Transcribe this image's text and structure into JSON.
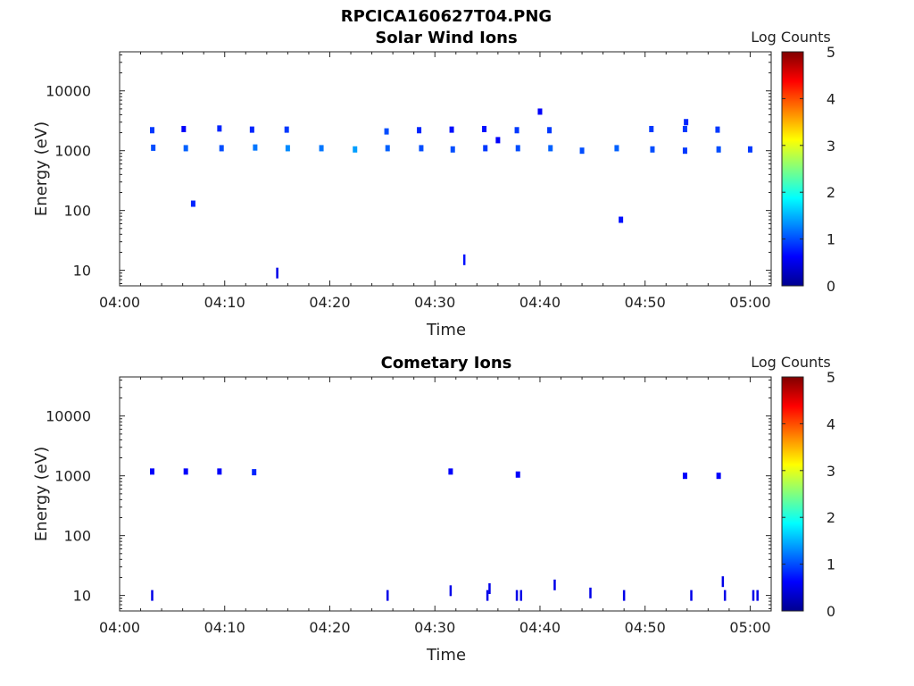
{
  "figure_title": "RPCICA160627T04.PNG",
  "colors": {
    "cmap": [
      "#00008f",
      "#0000ff",
      "#0080ff",
      "#00ffff",
      "#80ff80",
      "#ffff00",
      "#ff8000",
      "#ff0000",
      "#800000"
    ]
  },
  "chart_data": [
    {
      "type": "heatmap",
      "title": "Solar Wind Ions",
      "xlabel": "Time",
      "ylabel": "Energy (eV)",
      "x_ticks": [
        "04:00",
        "04:10",
        "04:20",
        "04:30",
        "04:40",
        "04:50",
        "05:00"
      ],
      "y_ticks": [
        "10",
        "100",
        "1000",
        "10000"
      ],
      "xlim_minutes": [
        0,
        62
      ],
      "ylim_ev": [
        5.5,
        45000
      ],
      "y_scale": "log",
      "colorbar": {
        "label": "Log Counts",
        "ticks": [
          "0",
          "1",
          "2",
          "3",
          "4",
          "5"
        ],
        "range": [
          0,
          5
        ]
      },
      "events": [
        {
          "t": 3.1,
          "e": 2200,
          "v": 0.9
        },
        {
          "t": 3.2,
          "e": 1120,
          "v": 1.0
        },
        {
          "t": 6.1,
          "e": 2300,
          "v": 0.6
        },
        {
          "t": 6.3,
          "e": 1100,
          "v": 1.1
        },
        {
          "t": 7.0,
          "e": 130,
          "v": 0.8
        },
        {
          "t": 9.5,
          "e": 2350,
          "v": 0.8
        },
        {
          "t": 9.7,
          "e": 1100,
          "v": 1.0
        },
        {
          "t": 12.6,
          "e": 2250,
          "v": 0.8
        },
        {
          "t": 12.9,
          "e": 1130,
          "v": 1.2
        },
        {
          "t": 15.0,
          "e": 9,
          "v": 0.5
        },
        {
          "t": 15.9,
          "e": 2250,
          "v": 0.9
        },
        {
          "t": 16.0,
          "e": 1100,
          "v": 1.3
        },
        {
          "t": 19.2,
          "e": 1100,
          "v": 1.2
        },
        {
          "t": 22.4,
          "e": 1050,
          "v": 1.4
        },
        {
          "t": 25.4,
          "e": 2100,
          "v": 1.0
        },
        {
          "t": 25.5,
          "e": 1100,
          "v": 1.1
        },
        {
          "t": 28.5,
          "e": 2200,
          "v": 0.8
        },
        {
          "t": 28.7,
          "e": 1100,
          "v": 1.0
        },
        {
          "t": 31.6,
          "e": 2250,
          "v": 0.7
        },
        {
          "t": 31.7,
          "e": 1050,
          "v": 1.0
        },
        {
          "t": 32.8,
          "e": 15,
          "v": 0.7
        },
        {
          "t": 34.7,
          "e": 2300,
          "v": 0.7
        },
        {
          "t": 34.8,
          "e": 1100,
          "v": 0.9
        },
        {
          "t": 36.0,
          "e": 1500,
          "v": 0.6
        },
        {
          "t": 37.8,
          "e": 2200,
          "v": 0.9
        },
        {
          "t": 37.9,
          "e": 1100,
          "v": 1.0
        },
        {
          "t": 40.0,
          "e": 4500,
          "v": 0.6
        },
        {
          "t": 40.9,
          "e": 2200,
          "v": 0.9
        },
        {
          "t": 41.0,
          "e": 1100,
          "v": 1.1
        },
        {
          "t": 44.0,
          "e": 1000,
          "v": 1.0
        },
        {
          "t": 47.3,
          "e": 1100,
          "v": 1.1
        },
        {
          "t": 47.7,
          "e": 70,
          "v": 0.7
        },
        {
          "t": 50.6,
          "e": 2300,
          "v": 0.9
        },
        {
          "t": 50.7,
          "e": 1050,
          "v": 1.0
        },
        {
          "t": 53.8,
          "e": 2300,
          "v": 0.9
        },
        {
          "t": 53.9,
          "e": 3000,
          "v": 0.8
        },
        {
          "t": 53.8,
          "e": 1000,
          "v": 0.9
        },
        {
          "t": 56.9,
          "e": 2250,
          "v": 0.9
        },
        {
          "t": 57.0,
          "e": 1050,
          "v": 1.0
        },
        {
          "t": 60.0,
          "e": 1050,
          "v": 0.9
        }
      ]
    },
    {
      "type": "heatmap",
      "title": "Cometary Ions",
      "xlabel": "Time",
      "ylabel": "Energy (eV)",
      "x_ticks": [
        "04:00",
        "04:10",
        "04:20",
        "04:30",
        "04:40",
        "04:50",
        "05:00"
      ],
      "y_ticks": [
        "10",
        "100",
        "1000",
        "10000"
      ],
      "xlim_minutes": [
        0,
        62
      ],
      "ylim_ev": [
        5.5,
        45000
      ],
      "y_scale": "log",
      "colorbar": {
        "label": "Log Counts",
        "ticks": [
          "0",
          "1",
          "2",
          "3",
          "4",
          "5"
        ],
        "range": [
          0,
          5
        ]
      },
      "events": [
        {
          "t": 3.1,
          "e": 1180,
          "v": 0.6
        },
        {
          "t": 3.1,
          "e": 10,
          "v": 0.5
        },
        {
          "t": 6.3,
          "e": 1180,
          "v": 0.6
        },
        {
          "t": 9.5,
          "e": 1180,
          "v": 0.6
        },
        {
          "t": 12.8,
          "e": 1150,
          "v": 0.8
        },
        {
          "t": 25.5,
          "e": 10,
          "v": 0.5
        },
        {
          "t": 31.5,
          "e": 1180,
          "v": 0.6
        },
        {
          "t": 31.5,
          "e": 12,
          "v": 0.5
        },
        {
          "t": 35.0,
          "e": 10,
          "v": 0.5
        },
        {
          "t": 35.2,
          "e": 13,
          "v": 0.5
        },
        {
          "t": 37.9,
          "e": 1050,
          "v": 0.6
        },
        {
          "t": 37.8,
          "e": 10,
          "v": 0.5
        },
        {
          "t": 38.2,
          "e": 10,
          "v": 0.5
        },
        {
          "t": 41.4,
          "e": 15,
          "v": 0.5
        },
        {
          "t": 44.8,
          "e": 11,
          "v": 0.5
        },
        {
          "t": 48.0,
          "e": 10,
          "v": 0.5
        },
        {
          "t": 53.8,
          "e": 1000,
          "v": 0.6
        },
        {
          "t": 54.4,
          "e": 10,
          "v": 0.5
        },
        {
          "t": 57.0,
          "e": 1000,
          "v": 0.6
        },
        {
          "t": 57.4,
          "e": 17,
          "v": 0.5
        },
        {
          "t": 57.6,
          "e": 10,
          "v": 0.5
        },
        {
          "t": 60.3,
          "e": 10,
          "v": 0.5
        },
        {
          "t": 60.7,
          "e": 10,
          "v": 0.5
        }
      ]
    }
  ]
}
